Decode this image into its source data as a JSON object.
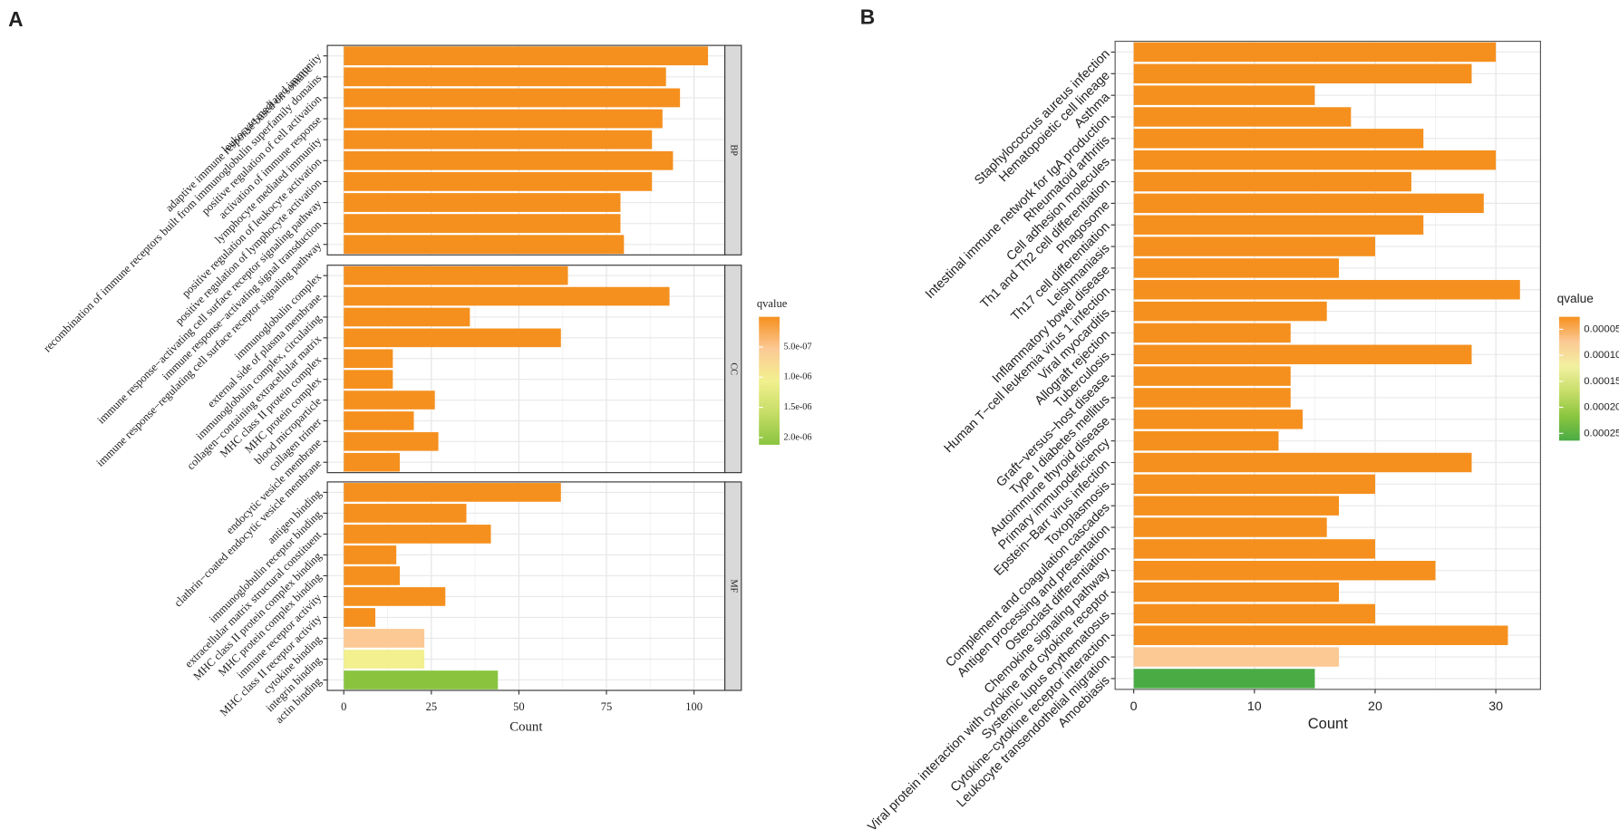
{
  "chart_data": [
    {
      "type": "bar",
      "orientation": "horizontal",
      "panel_label": "A",
      "x_label": "Count",
      "grid": true,
      "xlim": [
        -4.7,
        108.8
      ],
      "xticks": [
        0,
        25,
        50,
        75,
        100
      ],
      "facets": [
        {
          "name": "BP",
          "categories": [
            "leukocyte mediated immunity",
            "adaptive immune response based on somatic\nrecombination of immune receptors built from immunoglobulin superfamily domains",
            "positive regulation of cell activation",
            "activation of immune response",
            "lymphocyte mediated immunity",
            "positive regulation of leukocyte activation",
            "positive regulation of lymphocyte activation",
            "immune response−activating cell surface receptor signaling pathway",
            "immune response−activating signal transduction",
            "immune response−regulating cell surface receptor signaling pathway"
          ],
          "values": [
            104,
            92,
            96,
            91,
            88,
            94,
            88,
            79,
            79,
            80
          ],
          "colors": [
            "#f5901e",
            "#f5901e",
            "#f5901e",
            "#f5901e",
            "#f5901e",
            "#f5901e",
            "#f5901e",
            "#f5901e",
            "#f5901e",
            "#f5901e"
          ]
        },
        {
          "name": "CC",
          "categories": [
            "immunoglobulin complex",
            "external side of plasma membrane",
            "immunoglobulin complex, circulating",
            "collagen−containing extracellular matrix",
            "MHC class II protein complex",
            "MHC protein complex",
            "blood microparticle",
            "collagen trimer",
            "endocytic vesicle membrane",
            "clathrin−coated endocytic vesicle membrane"
          ],
          "values": [
            64,
            93,
            36,
            62,
            14,
            14,
            26,
            20,
            27,
            16
          ],
          "colors": [
            "#f5901e",
            "#f5901e",
            "#f5901e",
            "#f5901e",
            "#f5901e",
            "#f5901e",
            "#f5901e",
            "#f5901e",
            "#f5901e",
            "#f5901e"
          ]
        },
        {
          "name": "MF",
          "categories": [
            "antigen binding",
            "immunoglobulin receptor binding",
            "extracellular matrix structural constituent",
            "MHC class II protein complex binding",
            "MHC protein complex binding",
            "immune receptor activity",
            "MHC class II receptor activity",
            "cytokine binding",
            "integrin binding",
            "actin binding"
          ],
          "values": [
            62,
            35,
            42,
            15,
            16,
            29,
            9,
            23,
            23,
            44
          ],
          "colors": [
            "#f5901e",
            "#f5901e",
            "#f5901e",
            "#f5901e",
            "#f5901e",
            "#f5901e",
            "#f5901e",
            "#fcc995",
            "#f2f08f",
            "#8ac43f"
          ]
        }
      ],
      "legend": {
        "title": "qvalue",
        "colors": [
          "#f5901e",
          "#fcc995",
          "#f2f08f",
          "#c6dd66",
          "#8ac43f"
        ],
        "lim": [
          0,
          2.12e-06
        ],
        "ticks": [
          {
            "value": 5e-07,
            "label": "5.0e-07"
          },
          {
            "value": 1e-06,
            "label": "1.0e-06"
          },
          {
            "value": 1.5e-06,
            "label": "1.5e-06"
          },
          {
            "value": 2e-06,
            "label": "2.0e-06"
          }
        ]
      }
    },
    {
      "type": "bar",
      "orientation": "horizontal",
      "panel_label": "B",
      "x_label": "Count",
      "grid": true,
      "xlim": [
        -1.54,
        33.7
      ],
      "xticks": [
        0,
        10,
        20,
        30
      ],
      "categories": [
        "Staphylococcus aureus infection",
        "Hematopoietic cell lineage",
        "Asthma",
        "Intestinal immune network for IgA production",
        "Rheumatoid arthritis",
        "Cell adhesion molecules",
        "Th1 and Th2 cell differentiation",
        "Phagosome",
        "Th17 cell differentiation",
        "Leishmaniasis",
        "Inflammatory bowel disease",
        "Human T−cell leukemia virus 1 infection",
        "Viral myocarditis",
        "Allograft rejection",
        "Tuberculosis",
        "Graft−versus−host disease",
        "Type I diabetes mellitus",
        "Autoimmune thyroid disease",
        "Primary immunodeficiency",
        "Epstein−Barr virus infection",
        "Toxoplasmosis",
        "Complement and coagulation cascades",
        "Antigen processing and presentation",
        "Osteoclast differentiation",
        "Chemokine signaling pathway",
        "Viral protein interaction with cytokine and cytokine receptor",
        "Systemic lupus erythematosus",
        "Cytokine−cytokine receptor interaction",
        "Leukocyte transendothelial migration",
        "Amoebiasis"
      ],
      "values": [
        30,
        28,
        15,
        18,
        24,
        30,
        23,
        29,
        24,
        20,
        17,
        32,
        16,
        13,
        28,
        13,
        13,
        14,
        12,
        28,
        20,
        17,
        16,
        20,
        25,
        17,
        20,
        31,
        17,
        15
      ],
      "colors": [
        "#f5901e",
        "#f5901e",
        "#f5901e",
        "#f5901e",
        "#f5901e",
        "#f5901e",
        "#f5901e",
        "#f5901e",
        "#f5901e",
        "#f5901e",
        "#f5901e",
        "#f5901e",
        "#f5901e",
        "#f5901e",
        "#f5901e",
        "#f5901e",
        "#f5901e",
        "#f5901e",
        "#f5901e",
        "#f5901e",
        "#f5901e",
        "#f5901e",
        "#f5901e",
        "#f5901e",
        "#f5901e",
        "#f5901e",
        "#f5901e",
        "#f5901e",
        "#fcc995",
        "#4aab45"
      ],
      "legend": {
        "title": "qvalue",
        "colors": [
          "#f5901e",
          "#fcc995",
          "#f2f0a0",
          "#c8de6a",
          "#8cc63f",
          "#4aab45"
        ],
        "lim": [
          2.6e-05,
          0.000264
        ],
        "ticks": [
          {
            "value": 5e-05,
            "label": "0.00005"
          },
          {
            "value": 0.0001,
            "label": "0.00010"
          },
          {
            "value": 0.00015,
            "label": "0.00015"
          },
          {
            "value": 0.0002,
            "label": "0.00020"
          },
          {
            "value": 0.00025,
            "label": "0.00025"
          }
        ]
      }
    }
  ]
}
